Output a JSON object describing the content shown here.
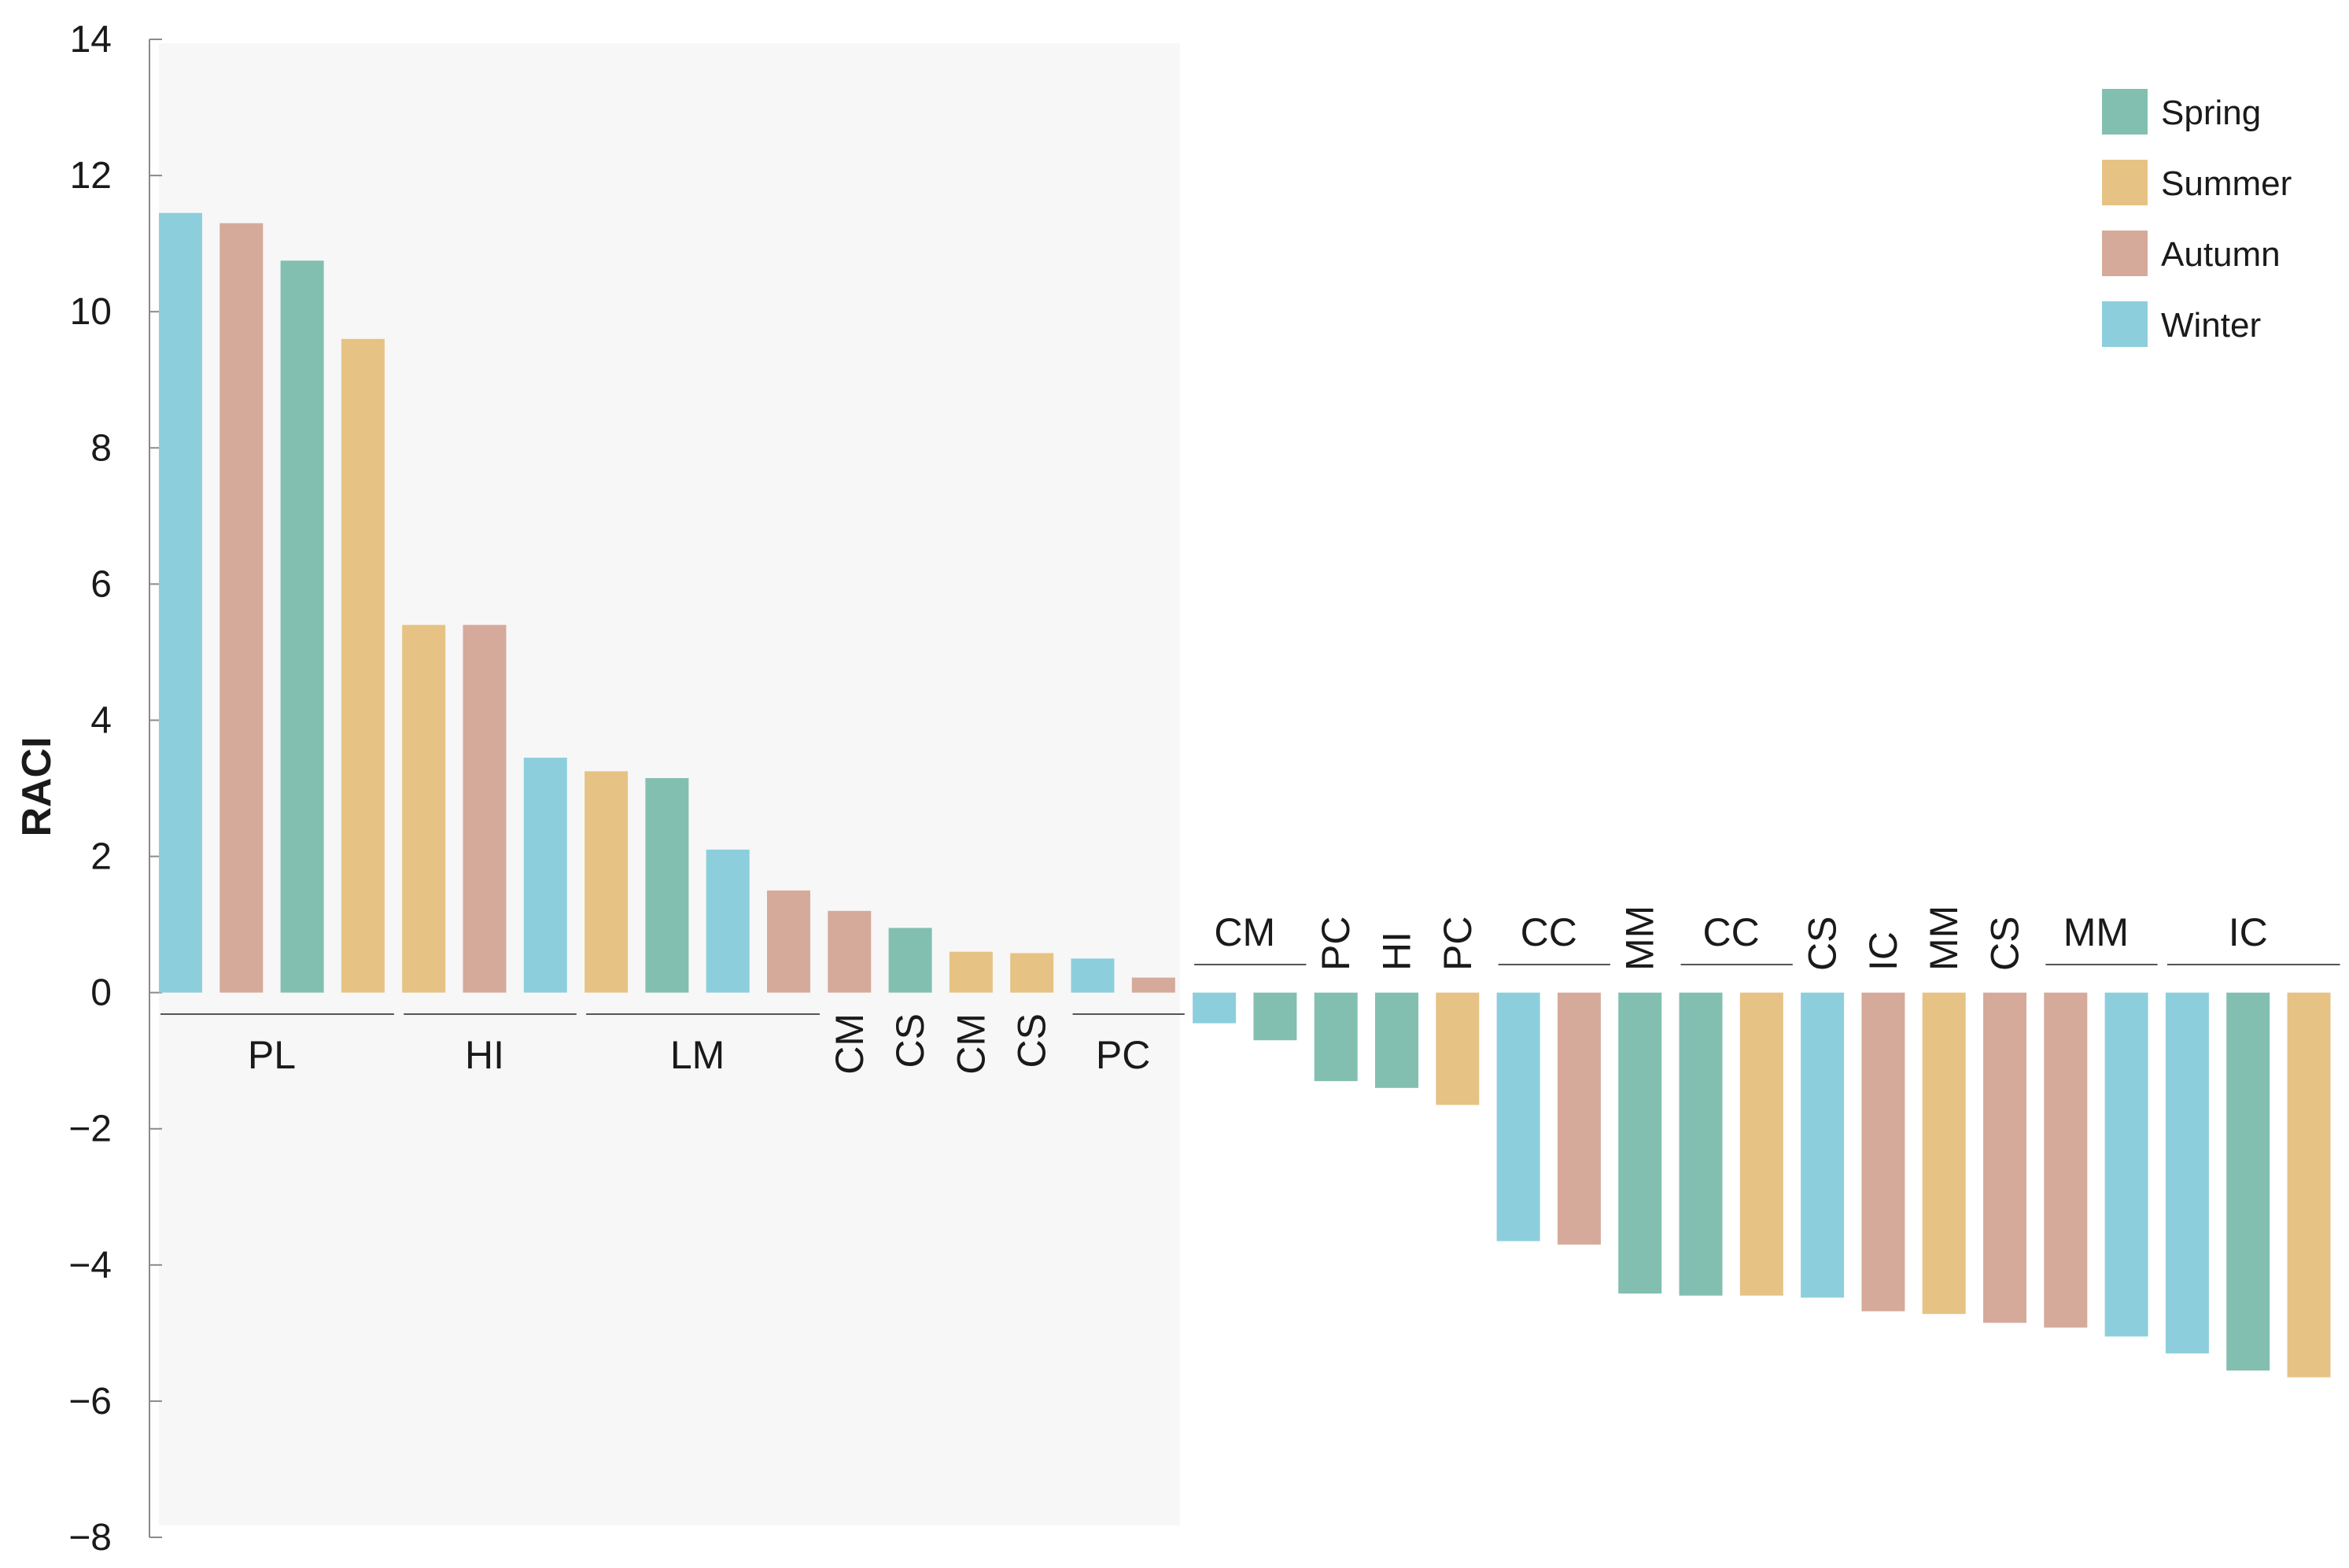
{
  "chart_data": {
    "type": "bar",
    "title": "",
    "xlabel": "",
    "ylabel": "RACI",
    "ylim": [
      -8,
      14
    ],
    "yticks": [
      14,
      12,
      10,
      8,
      6,
      4,
      2,
      0,
      -2,
      -4,
      -6,
      -8
    ],
    "ytick_labels": [
      "14",
      "12",
      "10",
      "8",
      "6",
      "4",
      "2",
      "0",
      "−2",
      "−4",
      "−6",
      "−8"
    ],
    "grid": false,
    "legend_position": "top-right",
    "legend": [
      {
        "name": "Spring",
        "color": "#82bfb1"
      },
      {
        "name": "Summer",
        "color": "#e6c384"
      },
      {
        "name": "Autumn",
        "color": "#d5aa9a"
      },
      {
        "name": "Winter",
        "color": "#8dcedc"
      }
    ],
    "bars": [
      {
        "season": "Winter",
        "value": 11.45
      },
      {
        "season": "Autumn",
        "value": 11.3
      },
      {
        "season": "Spring",
        "value": 10.75
      },
      {
        "season": "Summer",
        "value": 9.6
      },
      {
        "season": "Summer",
        "value": 5.4
      },
      {
        "season": "Autumn",
        "value": 5.4
      },
      {
        "season": "Winter",
        "value": 3.45
      },
      {
        "season": "Summer",
        "value": 3.25
      },
      {
        "season": "Spring",
        "value": 3.15
      },
      {
        "season": "Winter",
        "value": 2.1
      },
      {
        "season": "Autumn",
        "value": 1.5
      },
      {
        "season": "Autumn",
        "value": 1.2
      },
      {
        "season": "Spring",
        "value": 0.95
      },
      {
        "season": "Summer",
        "value": 0.6
      },
      {
        "season": "Summer",
        "value": 0.58
      },
      {
        "season": "Winter",
        "value": 0.5
      },
      {
        "season": "Autumn",
        "value": 0.22
      },
      {
        "season": "Winter",
        "value": -0.45
      },
      {
        "season": "Spring",
        "value": -0.7
      },
      {
        "season": "Spring",
        "value": -1.3
      },
      {
        "season": "Spring",
        "value": -1.4
      },
      {
        "season": "Summer",
        "value": -1.65
      },
      {
        "season": "Winter",
        "value": -3.65
      },
      {
        "season": "Autumn",
        "value": -3.7
      },
      {
        "season": "Spring",
        "value": -4.42
      },
      {
        "season": "Spring",
        "value": -4.45
      },
      {
        "season": "Summer",
        "value": -4.45
      },
      {
        "season": "Winter",
        "value": -4.48
      },
      {
        "season": "Autumn",
        "value": -4.68
      },
      {
        "season": "Summer",
        "value": -4.72
      },
      {
        "season": "Autumn",
        "value": -4.85
      },
      {
        "season": "Autumn",
        "value": -4.92
      },
      {
        "season": "Winter",
        "value": -5.05
      },
      {
        "season": "Winter",
        "value": -5.3
      },
      {
        "season": "Spring",
        "value": -5.55
      },
      {
        "season": "Summer",
        "value": -5.65
      }
    ],
    "groups": [
      {
        "label": "PL",
        "start": 0,
        "end": 3,
        "orient": "horizontal",
        "side": "bottom",
        "line": true
      },
      {
        "label": "HI",
        "start": 4,
        "end": 6,
        "orient": "horizontal",
        "side": "bottom",
        "line": true
      },
      {
        "label": "LM",
        "start": 7,
        "end": 10,
        "orient": "horizontal",
        "side": "bottom",
        "line": true
      },
      {
        "label": "CM",
        "start": 11,
        "end": 11,
        "orient": "vertical",
        "side": "bottom",
        "line": false
      },
      {
        "label": "CS",
        "start": 12,
        "end": 12,
        "orient": "vertical",
        "side": "bottom",
        "line": false
      },
      {
        "label": "CM",
        "start": 13,
        "end": 13,
        "orient": "vertical",
        "side": "bottom",
        "line": false
      },
      {
        "label": "CS",
        "start": 14,
        "end": 14,
        "orient": "vertical",
        "side": "bottom",
        "line": false
      },
      {
        "label": "PC",
        "start": 15,
        "end": 16,
        "orient": "horizontal",
        "side": "bottom",
        "line": true
      },
      {
        "label": "CM",
        "start": 17,
        "end": 18,
        "orient": "horizontal",
        "side": "top",
        "line": true
      },
      {
        "label": "PC",
        "start": 19,
        "end": 19,
        "orient": "vertical",
        "side": "top",
        "line": false
      },
      {
        "label": "HI",
        "start": 20,
        "end": 20,
        "orient": "vertical",
        "side": "top",
        "line": false
      },
      {
        "label": "PC",
        "start": 21,
        "end": 21,
        "orient": "vertical",
        "side": "top",
        "line": false
      },
      {
        "label": "CC",
        "start": 22,
        "end": 23,
        "orient": "horizontal",
        "side": "top",
        "line": true
      },
      {
        "label": "MM",
        "start": 24,
        "end": 24,
        "orient": "vertical",
        "side": "top",
        "line": false
      },
      {
        "label": "CC",
        "start": 25,
        "end": 26,
        "orient": "horizontal",
        "side": "top",
        "line": true
      },
      {
        "label": "CS",
        "start": 27,
        "end": 27,
        "orient": "vertical",
        "side": "top",
        "line": false
      },
      {
        "label": "IC",
        "start": 28,
        "end": 28,
        "orient": "vertical",
        "side": "top",
        "line": false
      },
      {
        "label": "MM",
        "start": 29,
        "end": 29,
        "orient": "vertical",
        "side": "top",
        "line": false
      },
      {
        "label": "CS",
        "start": 30,
        "end": 30,
        "orient": "vertical",
        "side": "top",
        "line": false
      },
      {
        "label": "MM",
        "start": 31,
        "end": 32,
        "orient": "horizontal",
        "side": "top",
        "line": true
      },
      {
        "label": "IC",
        "start": 33,
        "end": 35,
        "orient": "horizontal",
        "side": "top",
        "line": true
      }
    ],
    "shaded_region": {
      "start": 0,
      "end": 16,
      "color": "#f7f7f7"
    }
  }
}
